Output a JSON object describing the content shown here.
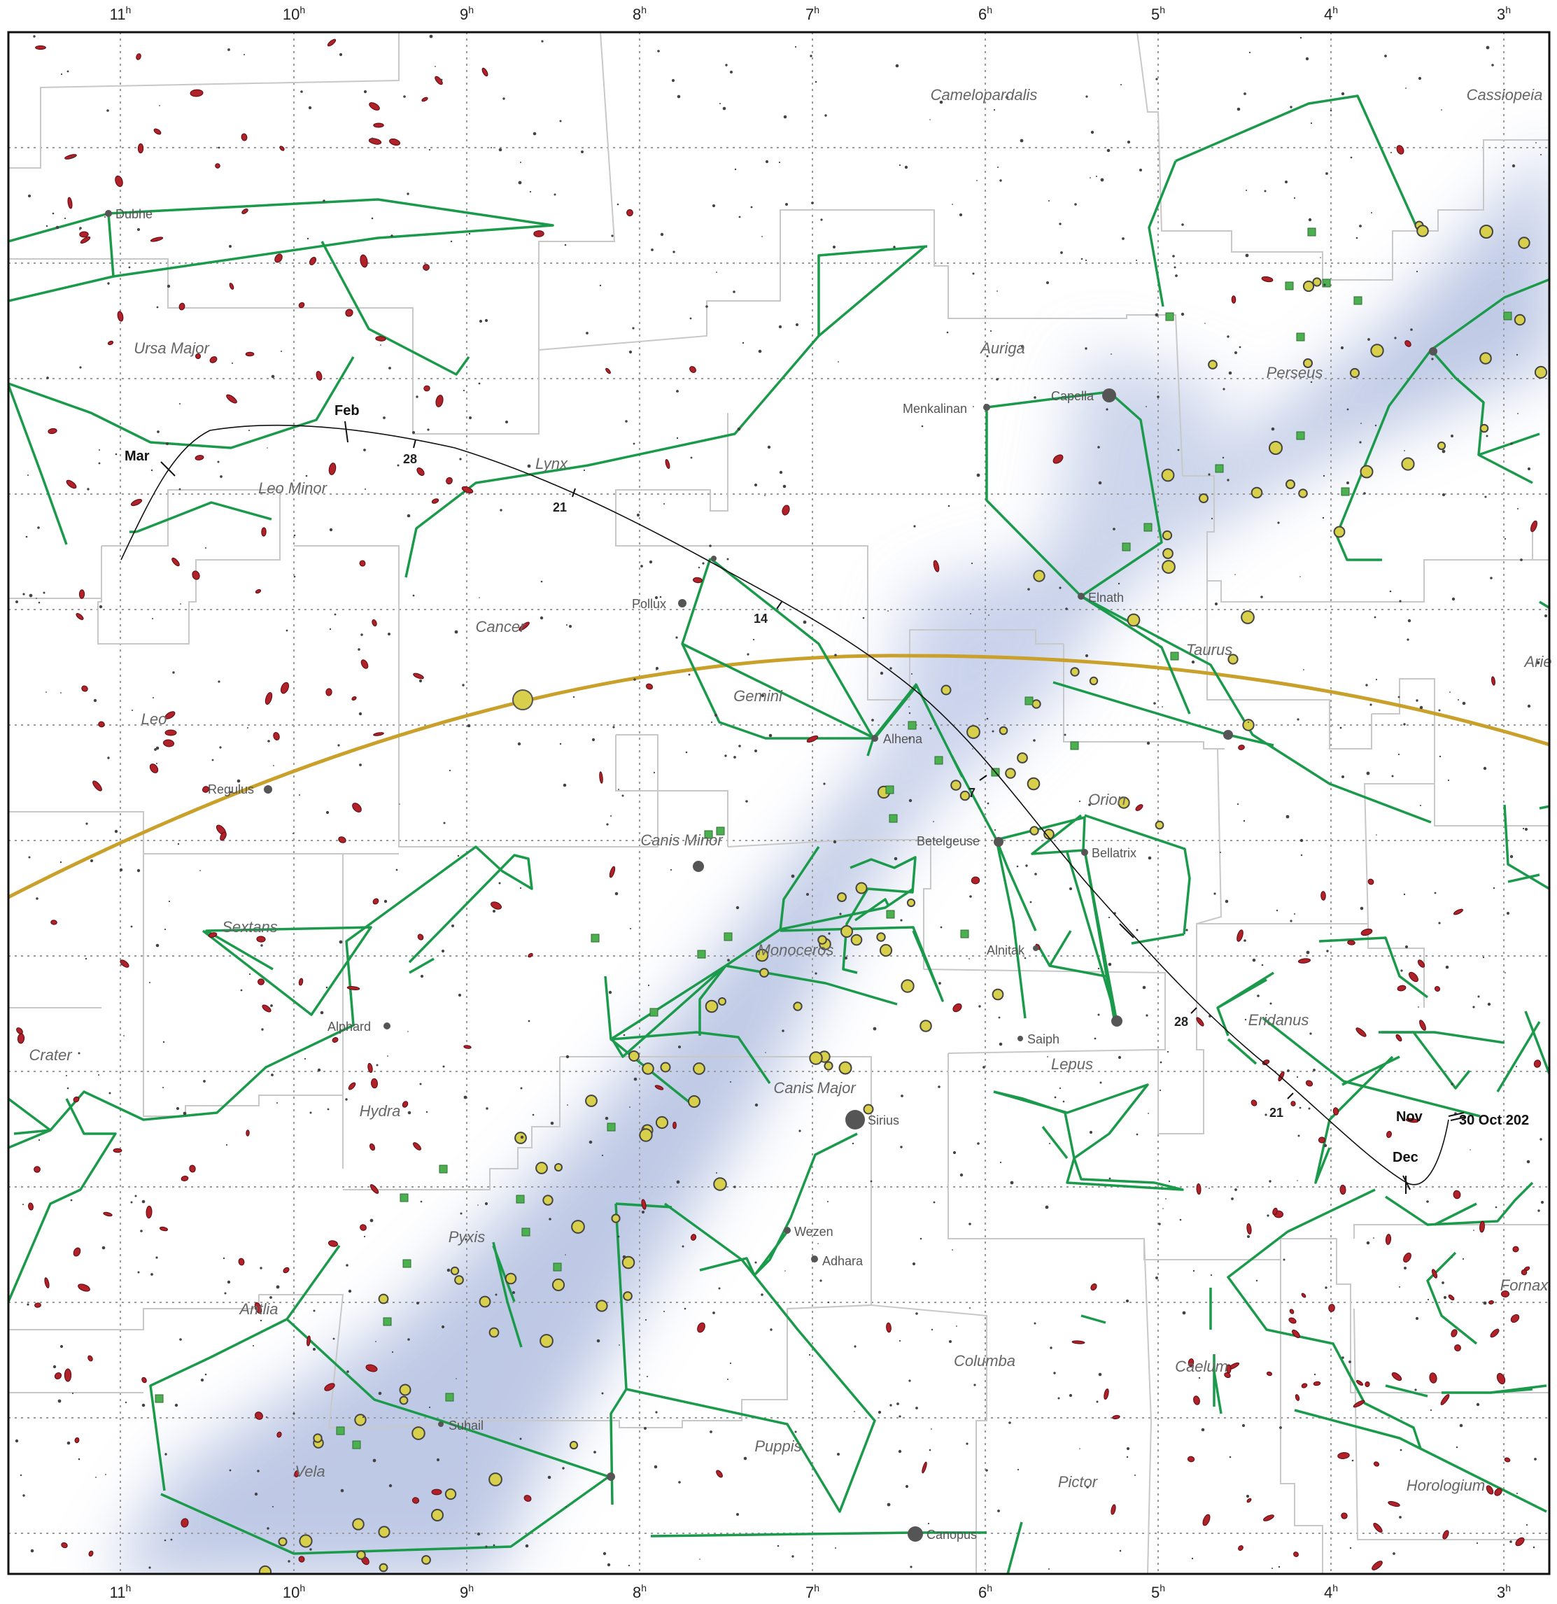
{
  "ra_hours": [
    {
      "h": "11",
      "sup": "h"
    },
    {
      "h": "10",
      "sup": "h"
    },
    {
      "h": "9",
      "sup": "h"
    },
    {
      "h": "8",
      "sup": "h"
    },
    {
      "h": "7",
      "sup": "h"
    },
    {
      "h": "6",
      "sup": "h"
    },
    {
      "h": "5",
      "sup": "h"
    },
    {
      "h": "4",
      "sup": "h"
    },
    {
      "h": "3",
      "sup": "h"
    }
  ],
  "constellations": [
    "Camelopardalis",
    "Cassiopeia",
    "Ursa Major",
    "Leo Minor",
    "Lynx",
    "Auriga",
    "Perseus",
    "Cancer",
    "Gemini",
    "Taurus",
    "Arie",
    "Leo",
    "Orion",
    "Canis Minor",
    "Sextans",
    "Monoceros",
    "Eridanus",
    "Crater",
    "Lepus",
    "Hydra",
    "Canis Major",
    "Pyxis",
    "Antlia",
    "Columba",
    "Caelum",
    "Fornax",
    "Puppis",
    "Vela",
    "Pictor",
    "Horologium"
  ],
  "stars": [
    "Dubhe",
    "Capella",
    "Menkalinan",
    "Pollux",
    "Elnath",
    "Alhena",
    "Regulus",
    "Betelgeuse",
    "Bellatrix",
    "Alnitak",
    "Alphard",
    "Saiph",
    "Sirius",
    "Wezen",
    "Adhara",
    "Suhail",
    "Canopus"
  ],
  "track": {
    "months": [
      "Mar",
      "Feb",
      "Nov",
      "Dec"
    ],
    "start_label": "30 Oct 202",
    "day_ticks": [
      "28",
      "21",
      "14",
      "7",
      "28",
      "21"
    ]
  },
  "colors": {
    "constellation_lines": "#1a9a4a",
    "boundaries": "#cccccc",
    "ecliptic": "#c9a02a",
    "galaxies": "#b0212a",
    "clusters": "#d8d04a",
    "nebulae": "#4caf50",
    "milky_way": "#aab8dc"
  }
}
